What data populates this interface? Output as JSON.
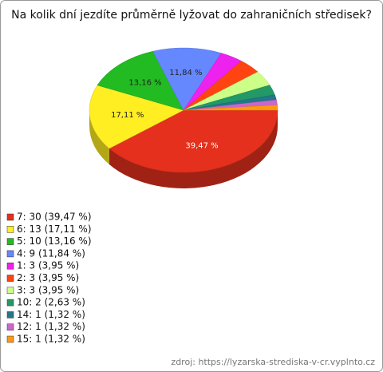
{
  "chart_data": {
    "type": "pie",
    "title": "Na kolik dní jezdíte průměrně lyžovat do zahraničních středisek?",
    "categories": [
      "7: 30 (39,47 %)",
      "6: 13 (17,11 %)",
      "5: 10 (13,16 %)",
      "4: 9 (11,84 %)",
      "1: 3 (3,95 %)",
      "2: 3 (3,95 %)",
      "3: 3 (3,95 %)",
      "10: 2 (2,63 %)",
      "14: 1 (1,32 %)",
      "12: 1 (1,32 %)",
      "15: 1 (1,32 %)"
    ],
    "values": [
      39.47,
      17.11,
      13.16,
      11.84,
      3.95,
      3.95,
      3.95,
      2.63,
      1.32,
      1.32,
      1.32
    ],
    "value_labels": [
      "39,47 %",
      "17,11 %",
      "13,16 %",
      "11,84 %",
      null,
      null,
      null,
      null,
      null,
      null,
      null
    ],
    "colors": [
      "#e4301c",
      "#ffee22",
      "#22bb22",
      "#6688ff",
      "#ee22ee",
      "#ff4411",
      "#ccff88",
      "#229966",
      "#227788",
      "#cc66cc",
      "#ff9911"
    ],
    "source": "zdroj: https://lyzarska-strediska-v-cr.vyplnto.cz"
  }
}
